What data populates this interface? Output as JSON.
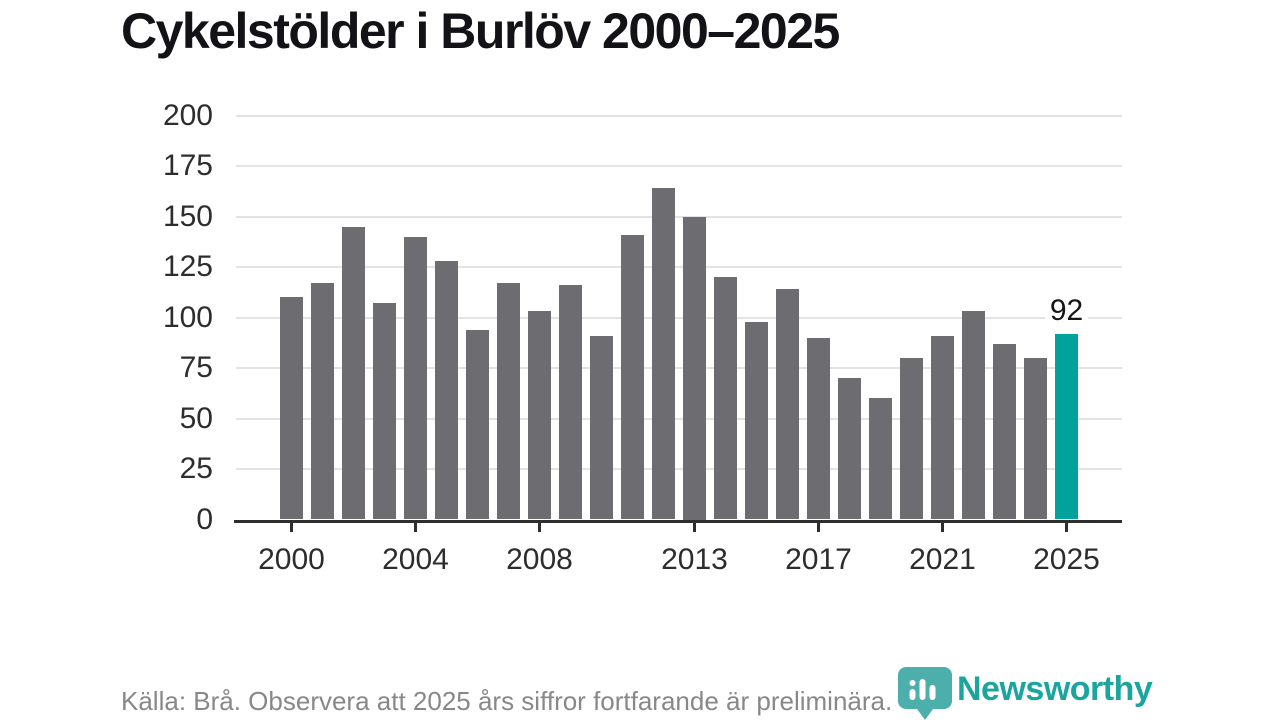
{
  "title": "Cykelstölder i Burlöv 2000–2025",
  "footer": {
    "source_note": "Källa: Brå. Observera att 2025 års siffror fortfarande är preliminära."
  },
  "logo": {
    "text": "Newsworthy",
    "icon": "newsworthy-pin-barchart-icon",
    "text_color": "#1ba59f",
    "icon_color": "#35a5a0"
  },
  "chart_data": {
    "type": "bar",
    "title": "Cykelstölder i Burlöv 2000–2025",
    "x": [
      2000,
      2001,
      2002,
      2003,
      2004,
      2005,
      2006,
      2007,
      2008,
      2009,
      2010,
      2011,
      2012,
      2013,
      2014,
      2015,
      2016,
      2017,
      2018,
      2019,
      2020,
      2021,
      2022,
      2023,
      2024,
      2025
    ],
    "values": [
      110,
      117,
      145,
      107,
      140,
      128,
      94,
      117,
      103,
      116,
      91,
      141,
      164,
      150,
      120,
      98,
      114,
      90,
      70,
      60,
      80,
      91,
      103,
      87,
      80,
      92
    ],
    "ylim": [
      0,
      200
    ],
    "y_ticks": [
      0,
      25,
      50,
      75,
      100,
      125,
      150,
      175,
      200
    ],
    "x_tick_years": [
      2000,
      2004,
      2008,
      2013,
      2017,
      2021,
      2025
    ],
    "grid": "horizontal",
    "legend": "none",
    "bar_color": "#6c6c71",
    "highlight_year": 2025,
    "highlight_color": "#00a29b",
    "highlight_value_label": "92",
    "annotation_color": "#161616",
    "axis_color": "#2e2e2e",
    "gridline_color": "#e3e3e3"
  }
}
